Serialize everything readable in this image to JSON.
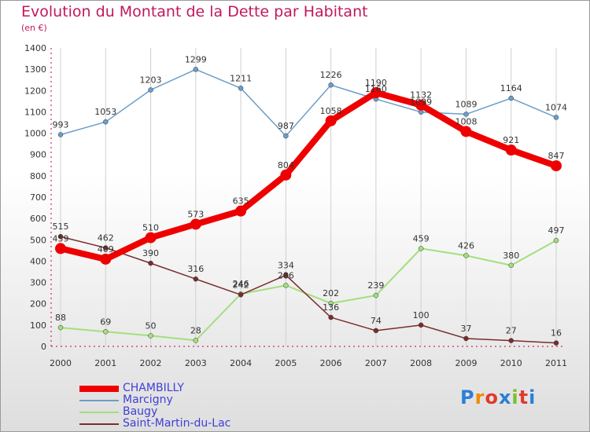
{
  "title": "Evolution du Montant de la Dette par Habitant",
  "unit_label": "(en €)",
  "logo_text": "Proxiti",
  "chart_data": {
    "type": "line",
    "title": "Evolution du Montant de la Dette par Habitant",
    "ylabel": "(en €)",
    "xlabel": "",
    "x": [
      "2000",
      "2001",
      "2002",
      "2003",
      "2004",
      "2005",
      "2006",
      "2007",
      "2008",
      "2009",
      "2010",
      "2011"
    ],
    "ylim": [
      0,
      1400
    ],
    "yticks": [
      0,
      100,
      200,
      300,
      400,
      500,
      600,
      700,
      800,
      900,
      1000,
      1100,
      1200,
      1300,
      1400
    ],
    "grid": "vertical",
    "legend_position": "bottom-left",
    "series": [
      {
        "name": "CHAMBILLY",
        "color": "#ee0000",
        "width": 8,
        "values": [
          459,
          409,
          510,
          573,
          635,
          804,
          1058,
          1190,
          1132,
          1008,
          921,
          847
        ]
      },
      {
        "name": "Marcigny",
        "color": "#6a9ec9",
        "width": 1.5,
        "values": [
          993,
          1053,
          1203,
          1299,
          1211,
          987,
          1226,
          1160,
          1099,
          1089,
          1164,
          1074
        ]
      },
      {
        "name": "Baugy",
        "color": "#a3df7c",
        "width": 2,
        "values": [
          88,
          69,
          50,
          28,
          246,
          286,
          202,
          239,
          459,
          426,
          380,
          497
        ]
      },
      {
        "name": "Saint-Martin-du-Lac",
        "color": "#7b2c2c",
        "width": 1.5,
        "values": [
          515,
          462,
          390,
          316,
          242,
          334,
          136,
          74,
          100,
          37,
          27,
          16
        ]
      }
    ]
  }
}
